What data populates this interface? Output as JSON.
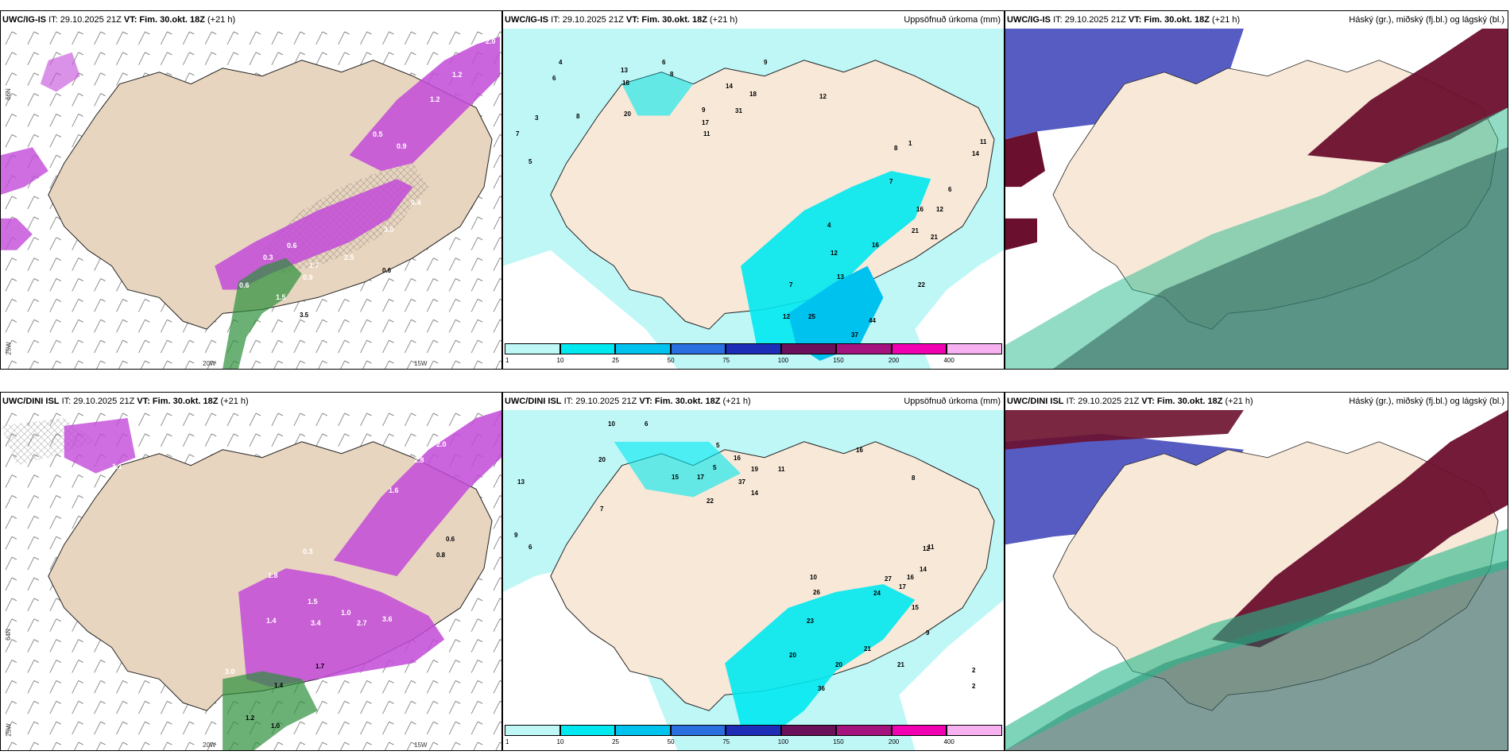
{
  "panels": [
    {
      "model": "UWC/IG-IS",
      "it": "IT: 29.10.2025 21Z",
      "vt_label": "VT:",
      "vt": "Fim. 30.okt. 18Z",
      "lead": "(+21 h)",
      "right": ""
    },
    {
      "model": "UWC/IG-IS",
      "it": "IT: 29.10.2025 21Z",
      "vt_label": "VT:",
      "vt": "Fim. 30.okt. 18Z",
      "lead": "(+21 h)",
      "right": "Uppsöfnuð úrkoma (mm)"
    },
    {
      "model": "UWC/IG-IS",
      "it": "IT: 29.10.2025 21Z",
      "vt_label": "VT:",
      "vt": "Fim. 30.okt. 18Z",
      "lead": "(+21 h)",
      "right": "Háský (gr.), miðský (fj.bl.) og lágský (bl.)"
    },
    {
      "model": "UWC/DINI ISL",
      "it": "IT: 29.10.2025 21Z",
      "vt_label": "VT:",
      "vt": "Fim. 30.okt. 18Z",
      "lead": "(+21 h)",
      "right": ""
    },
    {
      "model": "UWC/DINI ISL",
      "it": "IT: 29.10.2025 21Z",
      "vt_label": "VT:",
      "vt": "Fim. 30.okt. 18Z",
      "lead": "(+21 h)",
      "right": "Uppsöfnuð úrkoma (mm)"
    },
    {
      "model": "UWC/DINI ISL",
      "it": "IT: 29.10.2025 21Z",
      "vt_label": "VT:",
      "vt": "Fim. 30.okt. 18Z",
      "lead": "(+21 h)",
      "right": "Háský (gr.), miðský (fj.bl.) og lágský (bl.)"
    }
  ],
  "axis_labels": {
    "lon_20": "20W",
    "lon_15": "15W",
    "lat_66": "66N",
    "lat_64": "64N",
    "lon_25": "25W",
    "lat_9": "9-"
  },
  "legend": {
    "ticks": [
      "1",
      "10",
      "25",
      "50",
      "75",
      "100",
      "150",
      "200",
      "400"
    ],
    "colors": [
      "#bff7f7",
      "#00e8f0",
      "#00c2ef",
      "#2a6fe0",
      "#1e2db8",
      "#6b0f5a",
      "#a4127e",
      "#f000b0",
      "#f7b0f0"
    ]
  },
  "colors": {
    "land": "#f7e8d8",
    "sea": "#ffffff",
    "precip_light": "#bff7f7",
    "precip_mid": "#00e8f0",
    "precip_high": "#00c2ef",
    "snow": "#c24ad8",
    "snow_dark": "#8a1e9a",
    "rain_green": "#2c8f3a",
    "cloud_high": "#6b0f2e",
    "cloud_mid": "#3a3fb8",
    "cloud_low": "#26b88a"
  },
  "wind_top": [
    "1.2",
    "0.5",
    "0.9",
    "1.2",
    "2.0",
    "0.3",
    "0.6",
    "0.9",
    "1.7",
    "2.5",
    "3.0",
    "0.4",
    "0.6",
    "1.5",
    "2.0",
    "3.5",
    "0.6"
  ],
  "wind_bottom": [
    "1.1",
    "2.0",
    "2.8",
    "1.6",
    "0.3",
    "1.4",
    "1.8",
    "3.0",
    "3.4",
    "1.5",
    "2.7",
    "3.6",
    "1.0",
    "0.8",
    "1.4",
    "1.7",
    "1.2",
    "1.0",
    "0.6"
  ],
  "precip_top": [
    "4",
    "6",
    "8",
    "6",
    "8",
    "3",
    "7",
    "5",
    "9",
    "12",
    "14",
    "11",
    "18",
    "13",
    "20",
    "9",
    "17",
    "31",
    "18",
    "16",
    "6",
    "12",
    "7",
    "4",
    "8",
    "1",
    "16",
    "21",
    "12",
    "13",
    "11",
    "14",
    "21",
    "22",
    "7",
    "25",
    "44",
    "37",
    "12"
  ],
  "precip_bottom": [
    "10",
    "6",
    "5",
    "16",
    "20",
    "15",
    "17",
    "19",
    "37",
    "22",
    "14",
    "11",
    "8",
    "16",
    "13",
    "7",
    "5",
    "6",
    "9",
    "10",
    "26",
    "24",
    "23",
    "27",
    "14",
    "16",
    "17",
    "15",
    "11",
    "20",
    "20",
    "21",
    "21",
    "36",
    "9",
    "2",
    "2",
    "12"
  ]
}
